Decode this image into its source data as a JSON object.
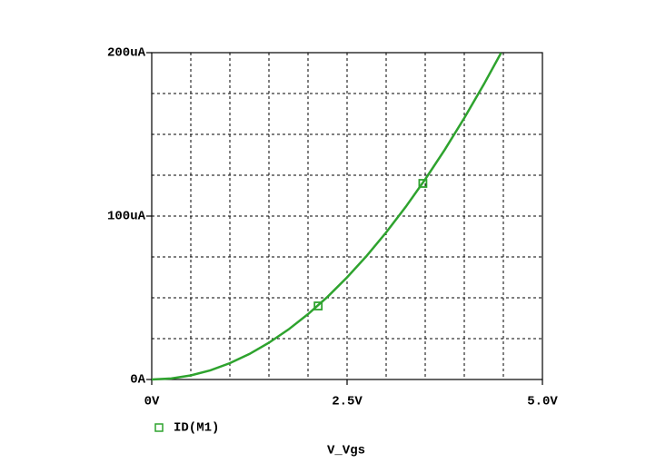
{
  "chart_data": {
    "type": "line",
    "x_label": "V_Vgs",
    "x": [
      0,
      0.25,
      0.5,
      0.75,
      1,
      1.25,
      1.5,
      1.75,
      2,
      2.25,
      2.5,
      2.75,
      3,
      3.25,
      3.5,
      3.75,
      4,
      4.25,
      4.47
    ],
    "series": [
      {
        "name": "ID(M1)",
        "color": "#2ea32e",
        "values": [
          0,
          0.6,
          2.5,
          5.6,
          10,
          15.6,
          22.5,
          30.6,
          40,
          50.6,
          62.5,
          75.6,
          90,
          105.6,
          122.5,
          140.6,
          160,
          180.6,
          199.8
        ],
        "markers": [
          {
            "x": 2.13,
            "y": 45
          },
          {
            "x": 3.47,
            "y": 120
          }
        ]
      }
    ],
    "xlim": [
      0,
      5
    ],
    "ylim": [
      0,
      200
    ],
    "xticks": [
      {
        "value": 0,
        "label": "0V"
      },
      {
        "value": 2.5,
        "label": "2.5V"
      },
      {
        "value": 5,
        "label": "5.0V"
      }
    ],
    "yticks": [
      {
        "value": 0,
        "label": "0A"
      },
      {
        "value": 100,
        "label": "100uA"
      },
      {
        "value": 200,
        "label": "200uA"
      }
    ],
    "xgrid": [
      0.5,
      1,
      1.5,
      2,
      2.5,
      3,
      3.5,
      4,
      4.5
    ],
    "ygrid": [
      25,
      50,
      75,
      100,
      125,
      150,
      175
    ],
    "grid": true
  }
}
